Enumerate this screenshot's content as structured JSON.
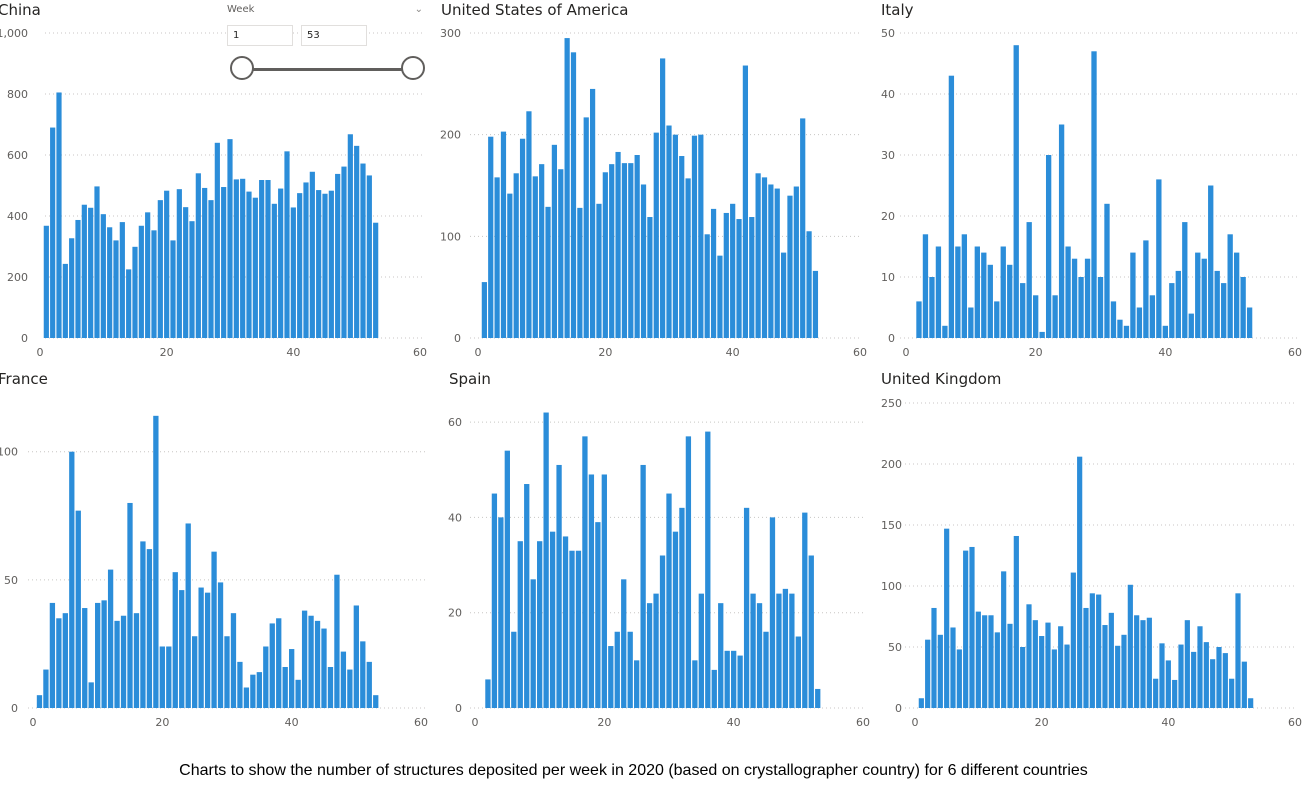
{
  "caption": "Charts to show the number of structures deposited per week in 2020 (based on crystallographer country) for 6 different countries",
  "slicer": {
    "label": "Week",
    "min_value": "1",
    "max_value": "53",
    "range": [
      1,
      53
    ],
    "chevron_icon": "chevron-down-icon"
  },
  "bar_color": "#2b8dd9",
  "chart_data": [
    {
      "type": "bar",
      "title": "China",
      "xlabel": "",
      "ylabel": "",
      "xlim": [
        0,
        60
      ],
      "xticks": [
        0,
        20,
        40,
        60
      ],
      "ylim": [
        0,
        1000
      ],
      "yticks": [
        0,
        200,
        400,
        600,
        800,
        1000
      ],
      "ytick_labels": [
        "0",
        "200",
        "400",
        "600",
        "800",
        "1,000"
      ],
      "grid": true,
      "x_start": 1,
      "values": [
        368,
        690,
        805,
        243,
        327,
        387,
        437,
        427,
        497,
        406,
        363,
        320,
        380,
        225,
        299,
        368,
        412,
        353,
        452,
        483,
        320,
        488,
        429,
        383,
        540,
        492,
        452,
        640,
        495,
        652,
        520,
        522,
        480,
        460,
        518,
        518,
        440,
        490,
        612,
        428,
        475,
        510,
        545,
        485,
        473,
        483,
        538,
        562,
        668,
        630,
        572,
        533,
        378
      ]
    },
    {
      "type": "bar",
      "title": "United States of America",
      "xlabel": "",
      "ylabel": "",
      "xlim": [
        0,
        60
      ],
      "xticks": [
        0,
        20,
        40,
        60
      ],
      "ylim": [
        0,
        300
      ],
      "yticks": [
        0,
        100,
        200,
        300
      ],
      "ytick_labels": [
        "0",
        "100",
        "200",
        "300"
      ],
      "grid": true,
      "x_start": 1,
      "values": [
        55,
        198,
        158,
        203,
        142,
        162,
        196,
        223,
        159,
        171,
        129,
        190,
        166,
        295,
        281,
        128,
        217,
        245,
        132,
        163,
        171,
        183,
        172,
        172,
        180,
        151,
        119,
        202,
        275,
        209,
        200,
        179,
        157,
        199,
        200,
        102,
        127,
        81,
        123,
        132,
        117,
        268,
        119,
        162,
        158,
        151,
        147,
        84,
        140,
        149,
        216,
        105,
        66
      ]
    },
    {
      "type": "bar",
      "title": "Italy",
      "xlabel": "",
      "ylabel": "",
      "xlim": [
        0,
        60
      ],
      "xticks": [
        0,
        20,
        40,
        60
      ],
      "ylim": [
        0,
        50
      ],
      "yticks": [
        0,
        10,
        20,
        30,
        40,
        50
      ],
      "ytick_labels": [
        "0",
        "10",
        "20",
        "30",
        "40",
        "50"
      ],
      "grid": true,
      "x_start": 2,
      "values": [
        6,
        17,
        10,
        15,
        2,
        43,
        15,
        17,
        5,
        15,
        14,
        12,
        6,
        15,
        12,
        48,
        9,
        19,
        7,
        1,
        30,
        7,
        35,
        15,
        13,
        10,
        13,
        47,
        10,
        22,
        6,
        3,
        2,
        14,
        5,
        16,
        7,
        26,
        2,
        9,
        11,
        19,
        4,
        14,
        13,
        25,
        11,
        9,
        17,
        14,
        10,
        5
      ]
    },
    {
      "type": "bar",
      "title": "France",
      "xlabel": "",
      "ylabel": "",
      "xlim": [
        0,
        60
      ],
      "xticks": [
        0,
        20,
        40,
        60
      ],
      "ylim": [
        0,
        119
      ],
      "yticks": [
        0,
        50,
        100
      ],
      "ytick_labels": [
        "0",
        "50",
        "100"
      ],
      "grid": true,
      "x_start": 1,
      "values": [
        5,
        15,
        41,
        35,
        37,
        100,
        77,
        39,
        10,
        41,
        42,
        54,
        34,
        36,
        80,
        37,
        65,
        62,
        114,
        24,
        24,
        53,
        46,
        72,
        28,
        47,
        45,
        61,
        49,
        28,
        37,
        18,
        8,
        13,
        14,
        24,
        33,
        35,
        16,
        23,
        11,
        38,
        36,
        34,
        31,
        16,
        52,
        22,
        15,
        40,
        26,
        18,
        5
      ]
    },
    {
      "type": "bar",
      "title": "Spain",
      "xlabel": "",
      "ylabel": "",
      "xlim": [
        0,
        60
      ],
      "xticks": [
        0,
        20,
        40,
        60
      ],
      "ylim": [
        0,
        64
      ],
      "yticks": [
        0,
        20,
        40,
        60
      ],
      "ytick_labels": [
        "0",
        "20",
        "40",
        "60"
      ],
      "grid": true,
      "x_start": 2,
      "values": [
        6,
        45,
        40,
        54,
        16,
        35,
        47,
        27,
        35,
        62,
        37,
        51,
        36,
        33,
        33,
        57,
        49,
        39,
        49,
        13,
        16,
        27,
        16,
        10,
        51,
        22,
        24,
        32,
        45,
        37,
        42,
        57,
        10,
        24,
        58,
        8,
        22,
        12,
        12,
        11,
        42,
        24,
        22,
        16,
        40,
        24,
        25,
        24,
        15,
        41,
        32,
        4
      ]
    },
    {
      "type": "bar",
      "title": "United Kingdom",
      "xlabel": "",
      "ylabel": "",
      "xlim": [
        0,
        60
      ],
      "xticks": [
        0,
        20,
        40,
        60
      ],
      "ylim": [
        0,
        250
      ],
      "yticks": [
        0,
        50,
        100,
        150,
        200,
        250
      ],
      "ytick_labels": [
        "0",
        "50",
        "100",
        "150",
        "200",
        "250"
      ],
      "grid": true,
      "x_start": 1,
      "values": [
        8,
        56,
        82,
        60,
        147,
        66,
        48,
        129,
        132,
        79,
        76,
        76,
        62,
        112,
        69,
        141,
        50,
        85,
        72,
        59,
        70,
        48,
        67,
        52,
        111,
        206,
        82,
        94,
        93,
        68,
        78,
        51,
        60,
        101,
        76,
        72,
        74,
        24,
        53,
        39,
        23,
        52,
        72,
        46,
        67,
        54,
        40,
        50,
        45,
        24,
        94,
        38,
        8
      ]
    }
  ]
}
